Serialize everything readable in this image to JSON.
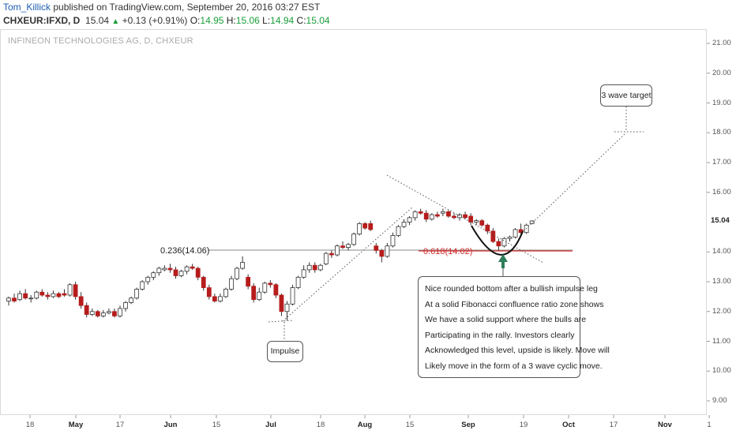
{
  "header": {
    "author": "Tom_Killick",
    "published": "published on TradingView.com, September 20, 2016 03:27 EST",
    "symbol": "CHXEUR:IFXD, D",
    "last": "15.04",
    "up_arrow": "▲",
    "change": "+0.13 (+0.91%)",
    "open_label": "O:",
    "open": "14.95",
    "high_label": "H:",
    "high": "15.06",
    "low_label": "L:",
    "low": "14.94",
    "close_label": "C:",
    "close": "15.04"
  },
  "subtitle": "INFINEON TECHNOLOGIES AG, D, CHXEUR",
  "price_badge": "15.04",
  "y_ticks": [
    "21.00",
    "20.00",
    "19.00",
    "18.00",
    "17.00",
    "16.00",
    "14.00",
    "13.00",
    "12.00",
    "11.00",
    "10.00",
    "9.00"
  ],
  "x_ticks": [
    "18",
    "May",
    "17",
    "Jun",
    "15",
    "Jul",
    "18",
    "Aug",
    "15",
    "Sep",
    "19",
    "Oct",
    "17",
    "Nov",
    "1"
  ],
  "fib_left": "0.236(14.06)",
  "fib_mid": "0.618(14.02)",
  "annotations": {
    "impulse": "Impulse",
    "target": "3 wave target",
    "note": [
      "Nice rounded bottom after a bullish impulse leg",
      "At a solid Fibonacci confluence ratio zone shows",
      "We have a solid support where the bulls are",
      "Participating in the rally. Investors clearly",
      "Acknowledged this level, upside is likely. Move will",
      "Likely move in the form of a 3 wave cyclic move."
    ]
  },
  "colors": {
    "up": "#ffffff",
    "down": "#b71c1c",
    "fib_line": "#d23030",
    "accent_green": "#1a9e3a",
    "arrow": "#2e7d5b"
  },
  "chart_data": {
    "type": "candlestick",
    "title": "INFINEON TECHNOLOGIES AG, D, CHXEUR",
    "ylim": [
      8.5,
      21.4
    ],
    "x_range_days": [
      0,
      210
    ],
    "x_tick_days": [
      4,
      19,
      34,
      48,
      63,
      77,
      92,
      105,
      122,
      138,
      154,
      168,
      187,
      203,
      218
    ],
    "candles": [
      {
        "d": 0,
        "o": 12.35,
        "h": 12.5,
        "l": 12.2,
        "c": 12.45
      },
      {
        "d": 1,
        "o": 12.45,
        "h": 12.6,
        "l": 12.3,
        "c": 12.35
      },
      {
        "d": 2,
        "o": 12.4,
        "h": 12.7,
        "l": 12.35,
        "c": 12.6
      },
      {
        "d": 3,
        "o": 12.6,
        "h": 12.75,
        "l": 12.4,
        "c": 12.45
      },
      {
        "d": 4,
        "o": 12.45,
        "h": 12.55,
        "l": 12.3,
        "c": 12.45
      },
      {
        "d": 5,
        "o": 12.45,
        "h": 12.7,
        "l": 12.4,
        "c": 12.65
      },
      {
        "d": 6,
        "o": 12.65,
        "h": 12.75,
        "l": 12.5,
        "c": 12.55
      },
      {
        "d": 7,
        "o": 12.55,
        "h": 12.65,
        "l": 12.4,
        "c": 12.5
      },
      {
        "d": 8,
        "o": 12.5,
        "h": 12.7,
        "l": 12.45,
        "c": 12.6
      },
      {
        "d": 9,
        "o": 12.6,
        "h": 12.65,
        "l": 12.45,
        "c": 12.5
      },
      {
        "d": 10,
        "o": 12.6,
        "h": 12.75,
        "l": 12.5,
        "c": 12.55
      },
      {
        "d": 11,
        "o": 12.55,
        "h": 12.95,
        "l": 12.5,
        "c": 12.9
      },
      {
        "d": 12,
        "o": 12.9,
        "h": 13.0,
        "l": 12.4,
        "c": 12.5
      },
      {
        "d": 13,
        "o": 12.5,
        "h": 12.65,
        "l": 12.1,
        "c": 12.2
      },
      {
        "d": 14,
        "o": 12.2,
        "h": 12.3,
        "l": 11.8,
        "c": 11.9
      },
      {
        "d": 15,
        "o": 11.9,
        "h": 12.1,
        "l": 11.85,
        "c": 12.0
      },
      {
        "d": 16,
        "o": 12.0,
        "h": 12.05,
        "l": 11.8,
        "c": 11.85
      },
      {
        "d": 17,
        "o": 11.85,
        "h": 12.05,
        "l": 11.8,
        "c": 11.95
      },
      {
        "d": 18,
        "o": 11.95,
        "h": 12.1,
        "l": 11.9,
        "c": 12.0
      },
      {
        "d": 19,
        "o": 12.0,
        "h": 12.1,
        "l": 11.8,
        "c": 11.85
      },
      {
        "d": 20,
        "o": 11.85,
        "h": 12.2,
        "l": 11.8,
        "c": 12.1
      },
      {
        "d": 21,
        "o": 12.1,
        "h": 12.35,
        "l": 12.0,
        "c": 12.3
      },
      {
        "d": 22,
        "o": 12.3,
        "h": 12.5,
        "l": 12.25,
        "c": 12.45
      },
      {
        "d": 23,
        "o": 12.45,
        "h": 12.8,
        "l": 12.4,
        "c": 12.75
      },
      {
        "d": 24,
        "o": 12.75,
        "h": 13.05,
        "l": 12.7,
        "c": 13.0
      },
      {
        "d": 25,
        "o": 13.0,
        "h": 13.2,
        "l": 12.9,
        "c": 13.15
      },
      {
        "d": 26,
        "o": 13.15,
        "h": 13.35,
        "l": 13.05,
        "c": 13.3
      },
      {
        "d": 27,
        "o": 13.3,
        "h": 13.5,
        "l": 13.2,
        "c": 13.45
      },
      {
        "d": 28,
        "o": 13.4,
        "h": 13.55,
        "l": 13.35,
        "c": 13.45
      },
      {
        "d": 29,
        "o": 13.45,
        "h": 13.6,
        "l": 13.3,
        "c": 13.4
      },
      {
        "d": 30,
        "o": 13.4,
        "h": 13.5,
        "l": 13.1,
        "c": 13.2
      },
      {
        "d": 31,
        "o": 13.2,
        "h": 13.4,
        "l": 13.15,
        "c": 13.35
      },
      {
        "d": 32,
        "o": 13.35,
        "h": 13.55,
        "l": 13.25,
        "c": 13.5
      },
      {
        "d": 33,
        "o": 13.5,
        "h": 13.6,
        "l": 13.4,
        "c": 13.45
      },
      {
        "d": 34,
        "o": 13.45,
        "h": 13.5,
        "l": 13.05,
        "c": 13.15
      },
      {
        "d": 35,
        "o": 13.15,
        "h": 13.2,
        "l": 12.7,
        "c": 12.8
      },
      {
        "d": 36,
        "o": 12.8,
        "h": 12.9,
        "l": 12.4,
        "c": 12.5
      },
      {
        "d": 37,
        "o": 12.5,
        "h": 12.6,
        "l": 12.3,
        "c": 12.35
      },
      {
        "d": 38,
        "o": 12.35,
        "h": 12.6,
        "l": 12.3,
        "c": 12.5
      },
      {
        "d": 39,
        "o": 12.5,
        "h": 12.8,
        "l": 12.45,
        "c": 12.75
      },
      {
        "d": 40,
        "o": 12.75,
        "h": 13.2,
        "l": 12.7,
        "c": 13.1
      },
      {
        "d": 41,
        "o": 13.1,
        "h": 13.5,
        "l": 13.05,
        "c": 13.45
      },
      {
        "d": 42,
        "o": 13.45,
        "h": 13.85,
        "l": 13.4,
        "c": 13.65
      },
      {
        "d": 43,
        "o": 13.15,
        "h": 13.25,
        "l": 12.75,
        "c": 12.85
      },
      {
        "d": 44,
        "o": 12.85,
        "h": 12.95,
        "l": 12.3,
        "c": 12.4
      },
      {
        "d": 45,
        "o": 12.4,
        "h": 12.8,
        "l": 12.35,
        "c": 12.65
      },
      {
        "d": 46,
        "o": 12.65,
        "h": 13.0,
        "l": 12.6,
        "c": 12.95
      },
      {
        "d": 47,
        "o": 12.95,
        "h": 13.05,
        "l": 12.8,
        "c": 12.9
      },
      {
        "d": 48,
        "o": 12.9,
        "h": 12.95,
        "l": 12.45,
        "c": 12.55
      },
      {
        "d": 49,
        "o": 12.55,
        "h": 12.6,
        "l": 11.85,
        "c": 12.0
      },
      {
        "d": 50,
        "o": 12.0,
        "h": 12.35,
        "l": 11.7,
        "c": 12.25
      },
      {
        "d": 51,
        "o": 12.25,
        "h": 12.9,
        "l": 12.2,
        "c": 12.8
      },
      {
        "d": 52,
        "o": 12.8,
        "h": 13.2,
        "l": 12.75,
        "c": 13.15
      },
      {
        "d": 53,
        "o": 13.15,
        "h": 13.55,
        "l": 13.1,
        "c": 13.4
      },
      {
        "d": 54,
        "o": 13.4,
        "h": 13.65,
        "l": 13.3,
        "c": 13.55
      },
      {
        "d": 55,
        "o": 13.55,
        "h": 13.65,
        "l": 13.3,
        "c": 13.4
      },
      {
        "d": 56,
        "o": 13.4,
        "h": 13.6,
        "l": 13.35,
        "c": 13.55
      },
      {
        "d": 57,
        "o": 13.6,
        "h": 14.0,
        "l": 13.55,
        "c": 13.95
      },
      {
        "d": 58,
        "o": 13.95,
        "h": 14.05,
        "l": 13.8,
        "c": 13.9
      },
      {
        "d": 59,
        "o": 13.9,
        "h": 14.25,
        "l": 13.85,
        "c": 14.2
      },
      {
        "d": 60,
        "o": 14.2,
        "h": 14.35,
        "l": 14.1,
        "c": 14.15
      },
      {
        "d": 61,
        "o": 14.15,
        "h": 14.3,
        "l": 14.05,
        "c": 14.25
      },
      {
        "d": 62,
        "o": 14.25,
        "h": 14.65,
        "l": 14.2,
        "c": 14.6
      },
      {
        "d": 63,
        "o": 14.6,
        "h": 15.0,
        "l": 14.55,
        "c": 14.95
      },
      {
        "d": 64,
        "o": 14.95,
        "h": 15.0,
        "l": 14.75,
        "c": 14.8
      },
      {
        "d": 65,
        "o": 14.95,
        "h": 15.05,
        "l": 14.7,
        "c": 14.75
      },
      {
        "d": 66,
        "o": 14.2,
        "h": 14.3,
        "l": 13.95,
        "c": 14.05
      },
      {
        "d": 67,
        "o": 14.05,
        "h": 14.1,
        "l": 13.65,
        "c": 13.85
      },
      {
        "d": 68,
        "o": 13.85,
        "h": 14.3,
        "l": 13.8,
        "c": 14.2
      },
      {
        "d": 69,
        "o": 14.2,
        "h": 14.65,
        "l": 14.15,
        "c": 14.55
      },
      {
        "d": 70,
        "o": 14.55,
        "h": 14.9,
        "l": 14.5,
        "c": 14.85
      },
      {
        "d": 71,
        "o": 14.85,
        "h": 15.1,
        "l": 14.8,
        "c": 15.0
      },
      {
        "d": 72,
        "o": 15.0,
        "h": 15.2,
        "l": 14.9,
        "c": 15.15
      },
      {
        "d": 73,
        "o": 15.15,
        "h": 15.4,
        "l": 15.05,
        "c": 15.35
      },
      {
        "d": 74,
        "o": 15.35,
        "h": 15.45,
        "l": 15.25,
        "c": 15.3
      },
      {
        "d": 75,
        "o": 15.3,
        "h": 15.4,
        "l": 15.0,
        "c": 15.1
      },
      {
        "d": 76,
        "o": 15.1,
        "h": 15.3,
        "l": 15.05,
        "c": 15.25
      },
      {
        "d": 77,
        "o": 15.25,
        "h": 15.35,
        "l": 15.15,
        "c": 15.2
      },
      {
        "d": 78,
        "o": 15.3,
        "h": 15.45,
        "l": 15.2,
        "c": 15.35
      },
      {
        "d": 79,
        "o": 15.35,
        "h": 15.4,
        "l": 15.15,
        "c": 15.2
      },
      {
        "d": 80,
        "o": 15.2,
        "h": 15.3,
        "l": 15.1,
        "c": 15.15
      },
      {
        "d": 81,
        "o": 15.15,
        "h": 15.3,
        "l": 15.05,
        "c": 15.25
      },
      {
        "d": 82,
        "o": 15.25,
        "h": 15.35,
        "l": 15.1,
        "c": 15.15
      },
      {
        "d": 83,
        "o": 15.2,
        "h": 15.3,
        "l": 14.9,
        "c": 15.0
      },
      {
        "d": 84,
        "o": 15.0,
        "h": 15.1,
        "l": 14.9,
        "c": 15.05
      },
      {
        "d": 85,
        "o": 15.05,
        "h": 15.1,
        "l": 14.85,
        "c": 14.9
      },
      {
        "d": 86,
        "o": 14.9,
        "h": 14.95,
        "l": 14.6,
        "c": 14.7
      },
      {
        "d": 87,
        "o": 14.7,
        "h": 14.8,
        "l": 14.3,
        "c": 14.35
      },
      {
        "d": 88,
        "o": 14.35,
        "h": 14.45,
        "l": 14.05,
        "c": 14.2
      },
      {
        "d": 89,
        "o": 14.2,
        "h": 14.5,
        "l": 14.15,
        "c": 14.45
      },
      {
        "d": 90,
        "o": 14.45,
        "h": 14.55,
        "l": 14.35,
        "c": 14.5
      },
      {
        "d": 91,
        "o": 14.5,
        "h": 14.8,
        "l": 14.45,
        "c": 14.75
      },
      {
        "d": 92,
        "o": 14.75,
        "h": 14.95,
        "l": 14.6,
        "c": 14.65
      },
      {
        "d": 93,
        "o": 14.65,
        "h": 14.95,
        "l": 14.6,
        "c": 14.9
      },
      {
        "d": 94,
        "o": 14.95,
        "h": 15.06,
        "l": 14.94,
        "c": 15.04
      }
    ],
    "fib_levels": [
      {
        "label": "0.236(14.06)",
        "value": 14.06
      },
      {
        "label": "0.618(14.02)",
        "value": 14.02
      }
    ],
    "target_level": 18.0
  }
}
